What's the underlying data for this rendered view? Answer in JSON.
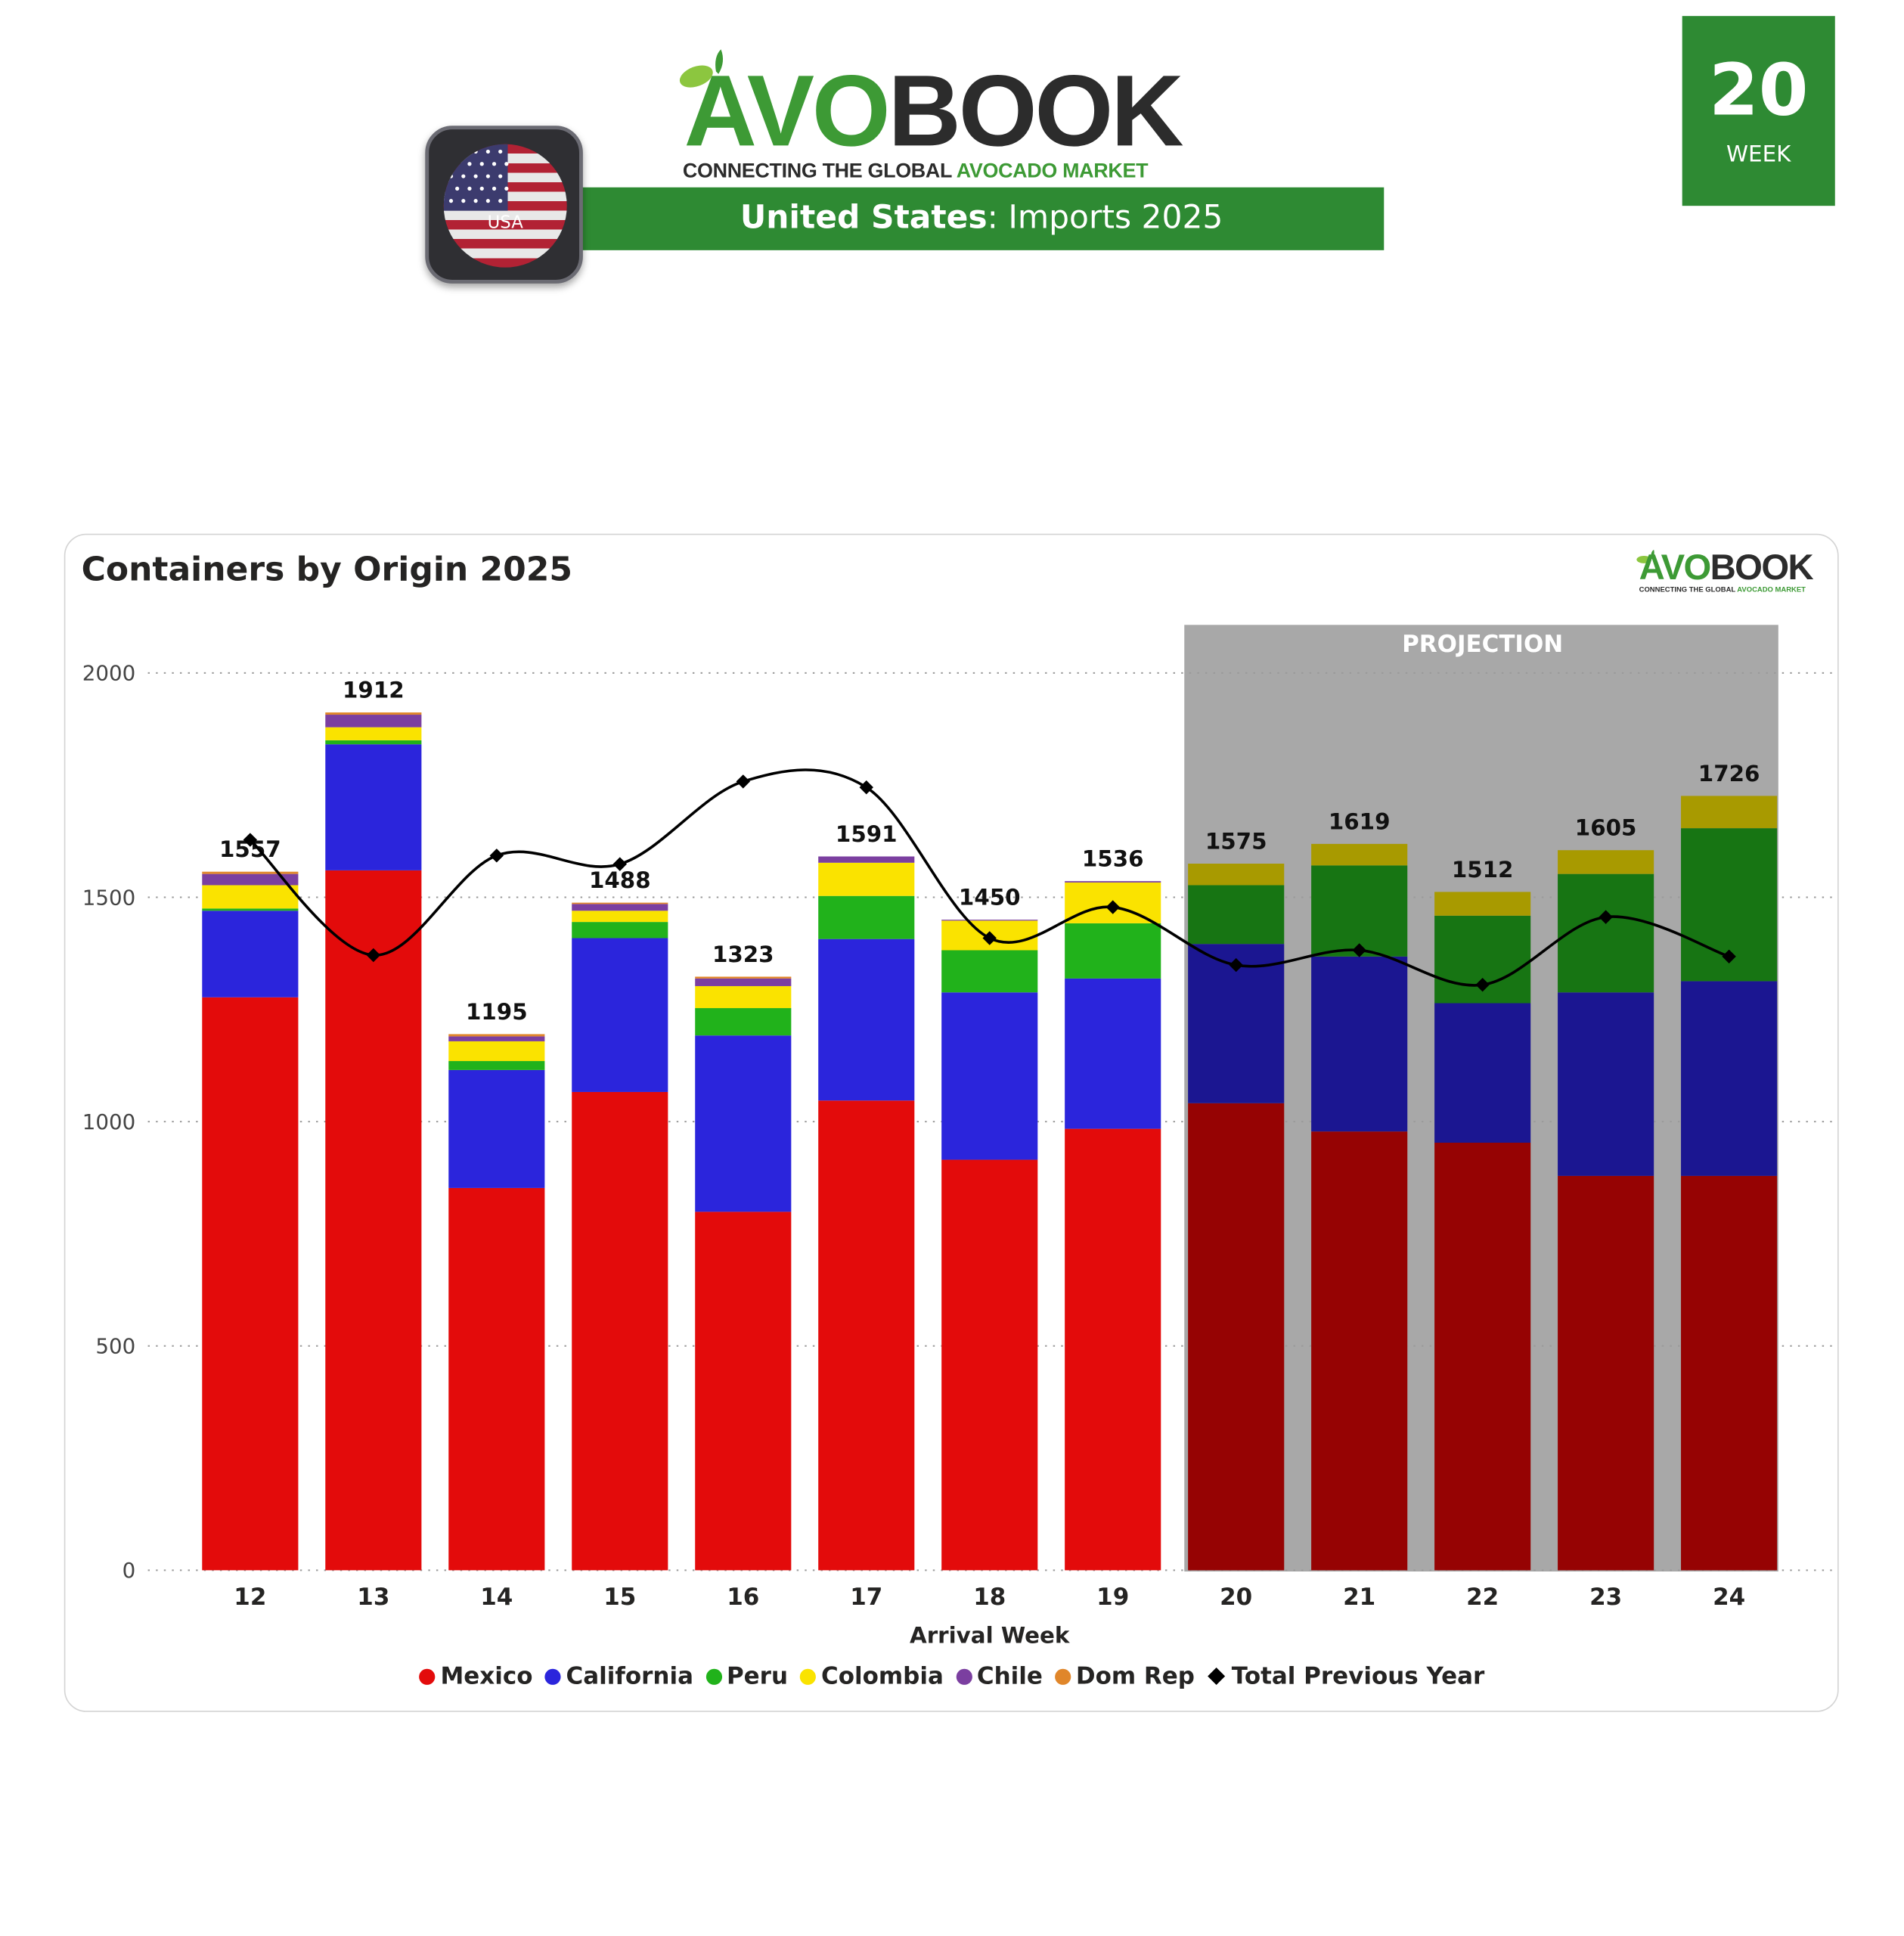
{
  "header": {
    "logo": {
      "part1": "AVO",
      "part2": "BOOK",
      "tagline_dark": "CONNECTING THE GLOBAL",
      "tagline_green": "AVOCADO MARKET"
    },
    "banner": {
      "country": "United States",
      "rest": ": Imports 2025"
    },
    "flag_label": "USA",
    "week": {
      "number": "20",
      "label": "WEEK"
    }
  },
  "card": {
    "title": "Containers by Origin 2025",
    "logo": {
      "part1": "AVO",
      "part2": "BOOK",
      "tagline_dark": "CONNECTING THE GLOBAL",
      "tagline_green": "AVOCADO MARKET"
    }
  },
  "chart_data": {
    "type": "bar",
    "stacked": true,
    "title": "Containers by Origin 2025",
    "xlabel": "Arrival Week",
    "ylabel": "",
    "ylim": [
      0,
      2000
    ],
    "yticks": [
      0,
      500,
      1000,
      1500,
      2000
    ],
    "grid": true,
    "legend_position": "bottom",
    "categories": [
      "12",
      "13",
      "14",
      "15",
      "16",
      "17",
      "18",
      "19",
      "20",
      "21",
      "22",
      "23",
      "24"
    ],
    "projection": {
      "label": "PROJECTION",
      "from_category": "20",
      "to_category": "24"
    },
    "series": [
      {
        "name": "Mexico",
        "color": "#e30b0b",
        "projection_color": "#960303",
        "values": [
          1277,
          1560,
          852,
          1066,
          799,
          1047,
          915,
          984,
          1041,
          978,
          953,
          879,
          879
        ]
      },
      {
        "name": "California",
        "color": "#2b25dc",
        "projection_color": "#1b1691",
        "values": [
          193,
          281,
          263,
          343,
          393,
          360,
          373,
          335,
          355,
          390,
          311,
          409,
          434
        ]
      },
      {
        "name": "Peru",
        "color": "#21b21b",
        "projection_color": "#177513",
        "values": [
          5,
          9,
          20,
          36,
          61,
          96,
          94,
          123,
          131,
          203,
          195,
          264,
          341
        ]
      },
      {
        "name": "Colombia",
        "color": "#fae300",
        "projection_color": "#a89a00",
        "values": [
          52,
          29,
          44,
          25,
          49,
          74,
          66,
          91,
          48,
          48,
          53,
          53,
          72
        ]
      },
      {
        "name": "Chile",
        "color": "#7b3fa0",
        "projection_color": "#7b3fa0",
        "values": [
          25,
          28,
          11,
          15,
          17,
          14,
          2,
          3,
          0,
          0,
          0,
          0,
          0
        ]
      },
      {
        "name": "Dom Rep",
        "color": "#e0862a",
        "projection_color": "#e0862a",
        "values": [
          5,
          5,
          5,
          3,
          4,
          0,
          0,
          0,
          0,
          0,
          0,
          0,
          0
        ]
      }
    ],
    "totals": [
      1557,
      1912,
      1195,
      1488,
      1323,
      1591,
      1450,
      1536,
      1575,
      1619,
      1512,
      1605,
      1726
    ],
    "line": {
      "name": "Total Previous Year",
      "color": "#000000",
      "values": [
        1628,
        1371,
        1593,
        1574,
        1758,
        1745,
        1409,
        1478,
        1349,
        1382,
        1305,
        1456,
        1368
      ]
    }
  }
}
